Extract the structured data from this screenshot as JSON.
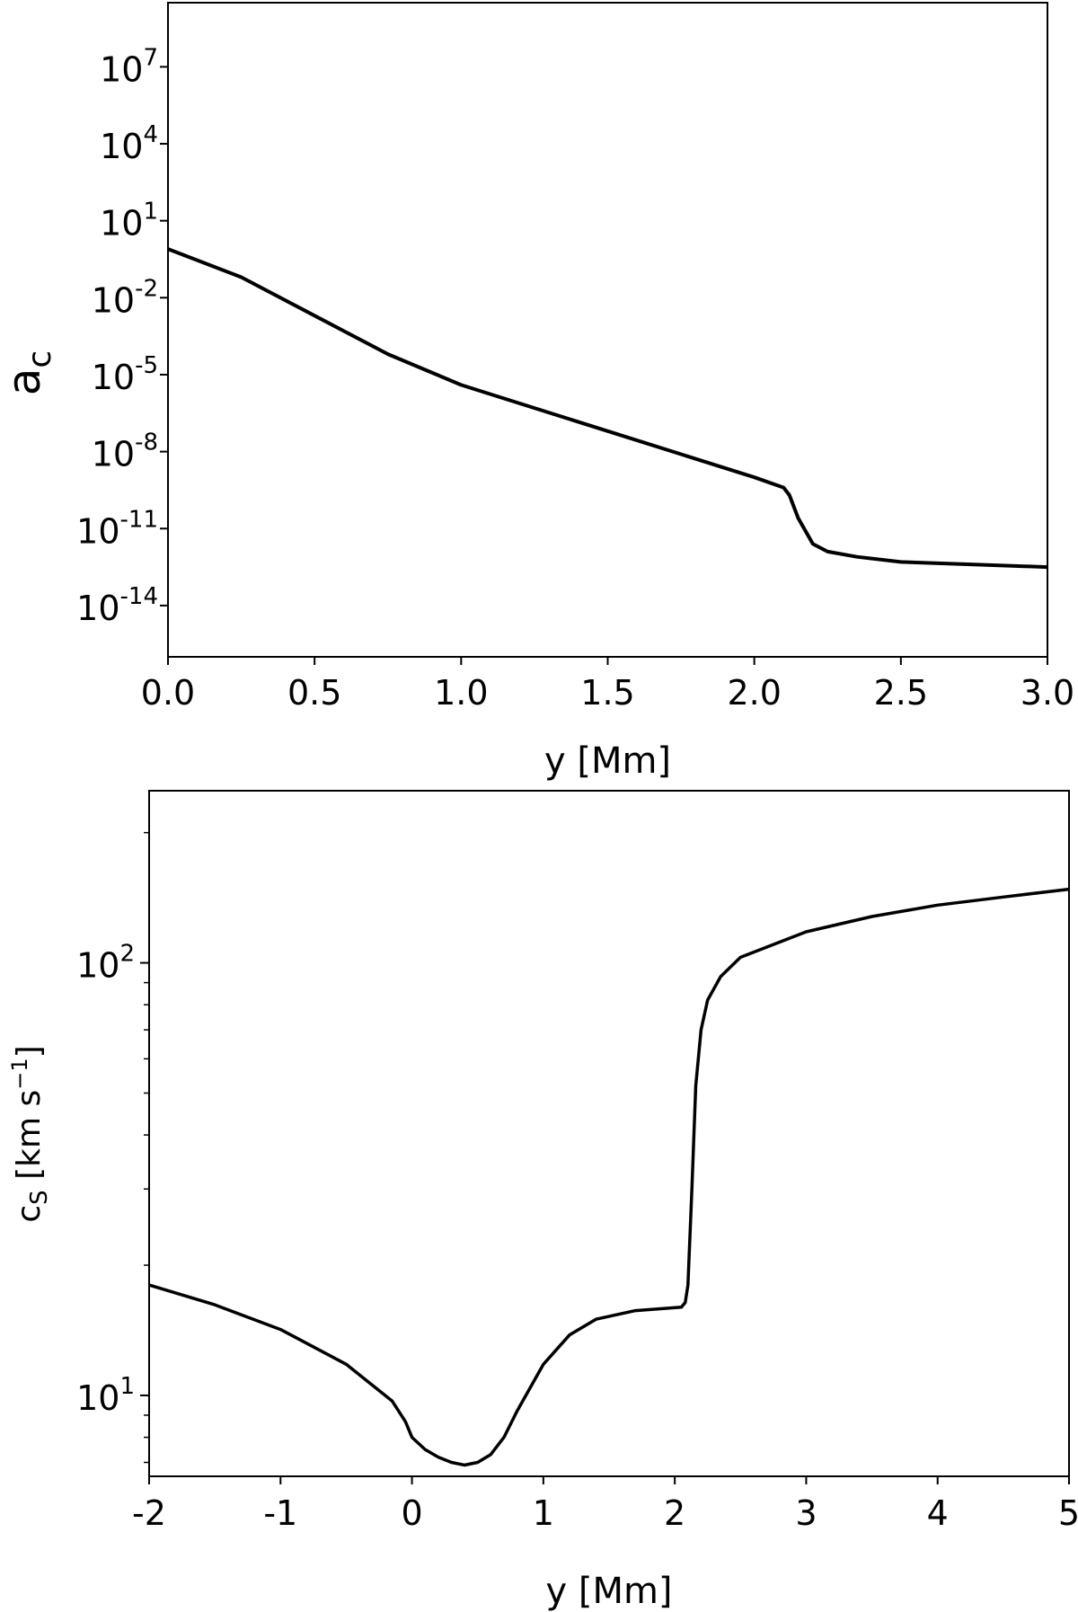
{
  "chart_data": [
    {
      "type": "line",
      "xlabel": "y [Mm]",
      "ylabel_main": "a",
      "ylabel_sub": "c",
      "yscale": "log",
      "xlim": [
        0.0,
        3.0
      ],
      "ylim_exp": [
        -16,
        9.5
      ],
      "x_ticks": [
        0.0,
        0.5,
        1.0,
        1.5,
        2.0,
        2.5,
        3.0
      ],
      "x_tick_labels": [
        "0.0",
        "0.5",
        "1.0",
        "1.5",
        "2.0",
        "2.5",
        "3.0"
      ],
      "y_ticks_exp": [
        -14,
        -11,
        -8,
        -5,
        -2,
        1,
        4,
        7
      ],
      "y_tick_labels": [
        {
          "base": "10",
          "exp": "-14"
        },
        {
          "base": "10",
          "exp": "-11"
        },
        {
          "base": "10",
          "exp": "-8"
        },
        {
          "base": "10",
          "exp": "-5"
        },
        {
          "base": "10",
          "exp": "-2"
        },
        {
          "base": "10",
          "exp": "1"
        },
        {
          "base": "10",
          "exp": "4"
        },
        {
          "base": "10",
          "exp": "7"
        }
      ],
      "series": [
        {
          "x": [
            0.0,
            0.25,
            0.5,
            0.75,
            1.0,
            1.25,
            1.5,
            1.75,
            2.0,
            2.1,
            2.12,
            2.15,
            2.2,
            2.25,
            2.35,
            2.5,
            2.75,
            3.0
          ],
          "y_exp": [
            -0.1,
            -1.2,
            -2.7,
            -4.2,
            -5.4,
            -6.3,
            -7.2,
            -8.1,
            -9.0,
            -9.4,
            -9.7,
            -10.6,
            -11.6,
            -11.9,
            -12.1,
            -12.3,
            -12.4,
            -12.5
          ]
        }
      ]
    },
    {
      "type": "line",
      "xlabel": "y [Mm]",
      "ylabel_main": "c",
      "ylabel_sub": "S",
      "ylabel_rest": " [km s",
      "ylabel_sup": "−1",
      "ylabel_end": "]",
      "yscale": "log",
      "xlim": [
        -2,
        5
      ],
      "ylim": [
        6.5,
        250
      ],
      "x_ticks": [
        -2,
        -1,
        0,
        1,
        2,
        3,
        4,
        5
      ],
      "x_tick_labels": [
        "-2",
        "-1",
        "0",
        "1",
        "2",
        "3",
        "4",
        "5"
      ],
      "y_ticks": [
        10,
        100
      ],
      "y_tick_labels": [
        {
          "base": "10",
          "exp": "1"
        },
        {
          "base": "10",
          "exp": "2"
        }
      ],
      "series": [
        {
          "x": [
            -2.0,
            -1.5,
            -1.0,
            -0.5,
            -0.15,
            -0.05,
            0.0,
            0.1,
            0.2,
            0.3,
            0.4,
            0.5,
            0.6,
            0.7,
            0.8,
            1.0,
            1.2,
            1.4,
            1.7,
            2.05,
            2.08,
            2.1,
            2.13,
            2.16,
            2.2,
            2.25,
            2.35,
            2.5,
            3.0,
            3.5,
            4.0,
            4.5,
            5.0
          ],
          "y": [
            18.0,
            16.2,
            14.2,
            11.8,
            9.7,
            8.7,
            8.0,
            7.5,
            7.2,
            7.0,
            6.9,
            7.0,
            7.3,
            8.0,
            9.2,
            11.8,
            13.8,
            15.0,
            15.7,
            16.0,
            16.4,
            18.0,
            30.0,
            52.0,
            70.0,
            82.0,
            93.0,
            103.0,
            118.0,
            128.0,
            136.0,
            142.0,
            148.0
          ]
        }
      ]
    }
  ]
}
